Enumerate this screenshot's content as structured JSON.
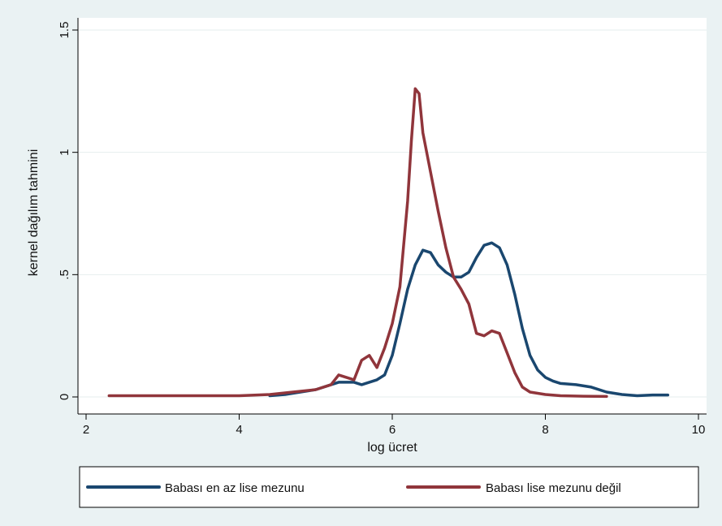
{
  "chart_data": {
    "type": "line",
    "xlabel": "log ücret",
    "ylabel": "kernel dağılım tahmini",
    "xlim": [
      2,
      10
    ],
    "ylim": [
      0,
      1.5
    ],
    "x_ticks": [
      2,
      4,
      6,
      8,
      10
    ],
    "x_tick_labels": [
      "2",
      "4",
      "6",
      "8",
      "10"
    ],
    "y_ticks": [
      0,
      0.5,
      1,
      1.5
    ],
    "y_tick_labels": [
      "0",
      ".5",
      "1",
      "1.5"
    ],
    "grid": "horizontal",
    "legend_position": "bottom",
    "colors": {
      "background": "#eaf2f3",
      "plot_bg": "#ffffff",
      "grid": "#e6eeee",
      "series1": "#1a476f",
      "series2": "#90353b"
    },
    "series": [
      {
        "name": "Babası en az lise mezunu",
        "color": "#1a476f",
        "x": [
          4.4,
          4.6,
          4.8,
          5.0,
          5.2,
          5.3,
          5.5,
          5.6,
          5.7,
          5.8,
          5.9,
          6.0,
          6.1,
          6.2,
          6.3,
          6.4,
          6.5,
          6.6,
          6.7,
          6.8,
          6.9,
          7.0,
          7.1,
          7.2,
          7.3,
          7.4,
          7.5,
          7.6,
          7.7,
          7.8,
          7.9,
          8.0,
          8.1,
          8.2,
          8.4,
          8.6,
          8.8,
          9.0,
          9.2,
          9.4,
          9.6
        ],
        "y": [
          0.005,
          0.01,
          0.02,
          0.03,
          0.05,
          0.06,
          0.06,
          0.05,
          0.06,
          0.07,
          0.09,
          0.17,
          0.3,
          0.44,
          0.54,
          0.6,
          0.59,
          0.54,
          0.51,
          0.49,
          0.49,
          0.51,
          0.57,
          0.62,
          0.63,
          0.61,
          0.54,
          0.42,
          0.28,
          0.17,
          0.11,
          0.08,
          0.065,
          0.055,
          0.05,
          0.04,
          0.02,
          0.01,
          0.005,
          0.008,
          0.008
        ]
      },
      {
        "name": "Babası lise mezunu değil",
        "color": "#90353b",
        "x": [
          2.3,
          2.6,
          3.0,
          3.5,
          4.0,
          4.4,
          4.7,
          5.0,
          5.2,
          5.3,
          5.4,
          5.5,
          5.6,
          5.7,
          5.8,
          5.9,
          6.0,
          6.1,
          6.2,
          6.25,
          6.3,
          6.35,
          6.4,
          6.5,
          6.6,
          6.7,
          6.8,
          6.9,
          7.0,
          7.1,
          7.2,
          7.3,
          7.4,
          7.5,
          7.6,
          7.7,
          7.8,
          8.0,
          8.2,
          8.5,
          8.8
        ],
        "y": [
          0.005,
          0.005,
          0.005,
          0.005,
          0.005,
          0.01,
          0.02,
          0.03,
          0.05,
          0.09,
          0.08,
          0.07,
          0.15,
          0.17,
          0.12,
          0.2,
          0.3,
          0.45,
          0.8,
          1.05,
          1.26,
          1.24,
          1.08,
          0.92,
          0.76,
          0.61,
          0.49,
          0.44,
          0.38,
          0.26,
          0.25,
          0.27,
          0.26,
          0.18,
          0.1,
          0.04,
          0.02,
          0.01,
          0.005,
          0.003,
          0.002
        ]
      }
    ]
  }
}
